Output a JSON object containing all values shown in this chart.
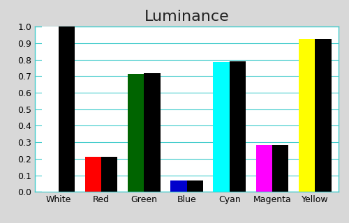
{
  "title": "Luminance",
  "categories": [
    "White",
    "Red",
    "Green",
    "Blue",
    "Cyan",
    "Magenta",
    "Yellow"
  ],
  "bar1_values": [
    1.0,
    0.21,
    0.715,
    0.07,
    0.785,
    0.285,
    0.925
  ],
  "bar2_values": [
    1.0,
    0.21,
    0.72,
    0.07,
    0.79,
    0.285,
    0.925
  ],
  "bar1_colors": [
    "#ffffff",
    "#ff0000",
    "#006400",
    "#0000cc",
    "#00ffff",
    "#ff00ff",
    "#ffff00"
  ],
  "bar2_color": "#000000",
  "background_color": "#d8d8d8",
  "plot_bg_color": "#ffffff",
  "grid_color": "#44cccc",
  "ylim": [
    0.0,
    1.0
  ],
  "yticks": [
    0.0,
    0.1,
    0.2,
    0.3,
    0.4,
    0.5,
    0.6,
    0.7,
    0.8,
    0.9,
    1.0
  ],
  "title_fontsize": 16,
  "tick_fontsize": 9,
  "bar_width": 0.38
}
